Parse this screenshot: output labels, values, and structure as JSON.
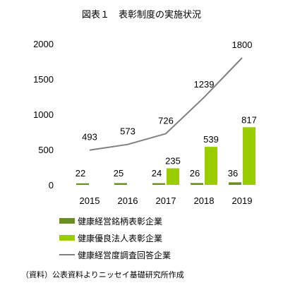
{
  "figure_title": "図表１　表彰制度の実施状況",
  "source_note": "（資料）公表資料よりニッセイ基礎研究所作成",
  "chart_data": {
    "type": "bar",
    "title": "",
    "categories": [
      "2015",
      "2016",
      "2017",
      "2018",
      "2019"
    ],
    "ylim": [
      0,
      2000
    ],
    "yticks": [
      0,
      500,
      1000,
      1500,
      2000
    ],
    "grid": false,
    "legend_position": "bottom",
    "series": [
      {
        "name": "健康経営銘柄表彰企業",
        "kind": "bar",
        "color": "#6b8e23",
        "values": [
          22,
          25,
          24,
          26,
          36
        ]
      },
      {
        "name": "健康優良法人表彰企業",
        "kind": "bar",
        "color": "#9acd00",
        "values": [
          null,
          null,
          235,
          539,
          817
        ]
      },
      {
        "name": "健康経営度調査回答企業",
        "kind": "line",
        "color": "#7f7f7f",
        "values": [
          493,
          573,
          726,
          1239,
          1800
        ]
      }
    ]
  }
}
